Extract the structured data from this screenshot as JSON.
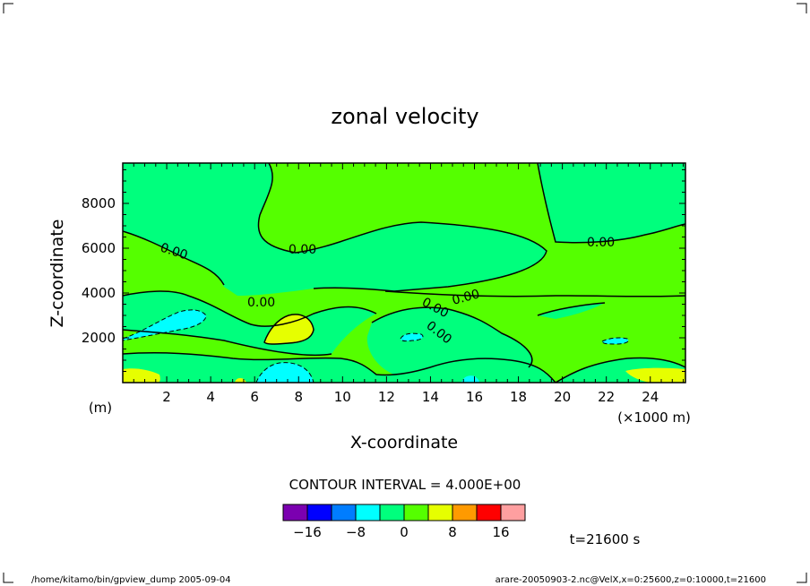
{
  "page": {
    "footer_left": "/home/kitamo/bin/gpview_dump   2005-09-04",
    "footer_right": "arare-20050903-2.nc@VelX,x=0:25600,z=0:10000,t=21600"
  },
  "chart_data": {
    "type": "heatmap",
    "title": "zonal velocity",
    "xlabel": "X-coordinate",
    "ylabel": "Z-coordinate",
    "x_unit": "(×1000 m)",
    "y_unit": "(m)",
    "xlim": [
      0,
      25.6
    ],
    "ylim": [
      0,
      9800
    ],
    "x_ticks": [
      2,
      4,
      6,
      8,
      10,
      12,
      14,
      16,
      18,
      20,
      22,
      24
    ],
    "x_tick_labels": [
      "2",
      "4",
      "6",
      "8",
      "10",
      "12",
      "14",
      "16",
      "18",
      "20",
      "22",
      "24"
    ],
    "y_ticks": [
      2000,
      4000,
      6000,
      8000
    ],
    "y_tick_labels": [
      "2000",
      "4000",
      "6000",
      "8000"
    ],
    "grid": false,
    "contour_interval_text": "CONTOUR INTERVAL = 4.000E+00",
    "contour_labels": [
      "0.00",
      "0.00",
      "0.00",
      "0.00",
      "0.00",
      "0.00",
      "0.00"
    ],
    "colorbar": {
      "colors": [
        "#7b00b0",
        "#0000ff",
        "#007dff",
        "#00ffff",
        "#00ff7d",
        "#55ff00",
        "#e6ff00",
        "#ff9a00",
        "#ff0000",
        "#ff9fa0"
      ],
      "tick_values": [
        -16,
        -8,
        0,
        8,
        16
      ],
      "tick_labels": [
        "−16",
        "−8",
        "0",
        "8",
        "16"
      ]
    },
    "time_label": "t=21600 s"
  }
}
